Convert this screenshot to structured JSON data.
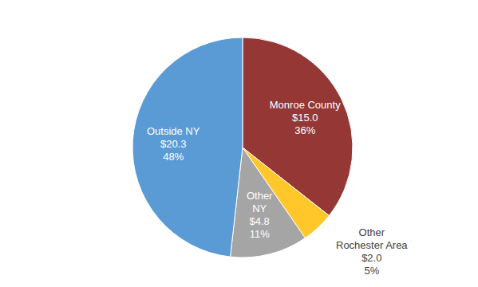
{
  "chart_data": {
    "type": "pie",
    "categories": [
      "Monroe County",
      "Other Rochester Area",
      "Other NY",
      "Outside NY"
    ],
    "values": [
      15.0,
      2.0,
      4.8,
      20.3
    ],
    "value_labels": [
      "$15.0",
      "$2.0",
      "$4.8",
      "$20.3"
    ],
    "percent_labels": [
      "36%",
      "5%",
      "11%",
      "48%"
    ],
    "colors": [
      "#953735",
      "#FFC729",
      "#A5A5A5",
      "#5B9BD5"
    ],
    "data_labels": true
  }
}
